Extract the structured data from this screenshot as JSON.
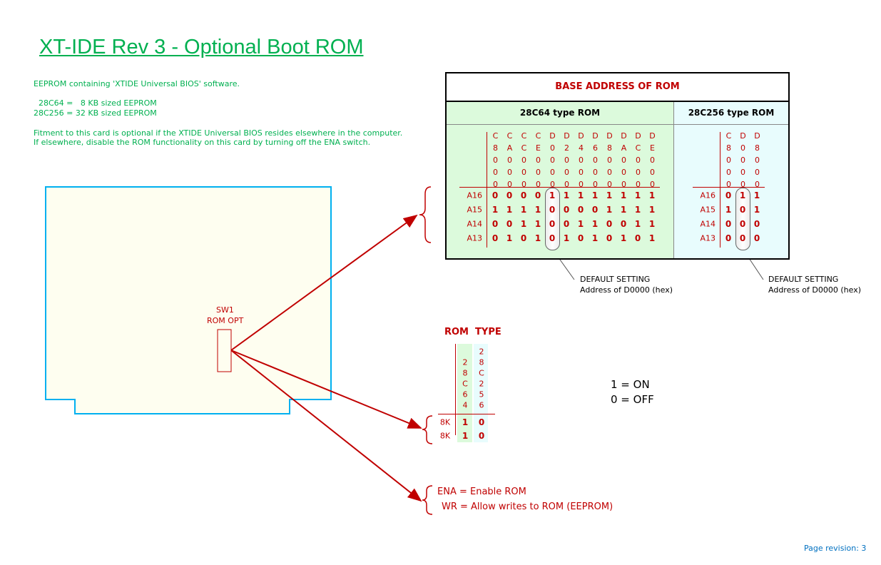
{
  "title": "XT-IDE  Rev 3  -  Optional Boot ROM",
  "notes": [
    "EEPROM containing 'XTIDE Universal BIOS' software.",
    "  28C64 =   8 KB sized EEPROM",
    "28C256 = 32 KB sized EEPROM",
    "Fitment to this card is optional if the XTIDE Universal BIOS resides elsewhere in the computer.",
    "If elsewhere, disable the ROM functionality on this card by turning off the ENA switch."
  ],
  "switch": {
    "name": "SW1",
    "label": "ROM OPT"
  },
  "base_table": {
    "header": "BASE ADDRESS OF ROM",
    "left": {
      "title": "28C64 type ROM",
      "addresses": [
        "C8000",
        "CA000",
        "CC000",
        "CE000",
        "D0000",
        "D2000",
        "D4000",
        "D6000",
        "D8000",
        "DA000",
        "DC000",
        "DE000"
      ],
      "rows": [
        {
          "label": "A16",
          "values": [
            "0",
            "0",
            "0",
            "0",
            "1",
            "1",
            "1",
            "1",
            "1",
            "1",
            "1",
            "1"
          ]
        },
        {
          "label": "A15",
          "values": [
            "1",
            "1",
            "1",
            "1",
            "0",
            "0",
            "0",
            "0",
            "1",
            "1",
            "1",
            "1"
          ]
        },
        {
          "label": "A14",
          "values": [
            "0",
            "0",
            "1",
            "1",
            "0",
            "0",
            "1",
            "1",
            "0",
            "0",
            "1",
            "1"
          ]
        },
        {
          "label": "A13",
          "values": [
            "0",
            "1",
            "0",
            "1",
            "0",
            "1",
            "0",
            "1",
            "0",
            "1",
            "0",
            "1"
          ]
        }
      ],
      "default_index": 4,
      "color": "#dcfadc"
    },
    "right": {
      "title": "28C256 type ROM",
      "addresses": [
        "C8000",
        "D0000",
        "D8000"
      ],
      "rows": [
        {
          "label": "A16",
          "values": [
            "0",
            "1",
            "1"
          ]
        },
        {
          "label": "A15",
          "values": [
            "1",
            "0",
            "1"
          ]
        },
        {
          "label": "A14",
          "values": [
            "0",
            "0",
            "0"
          ]
        },
        {
          "label": "A13",
          "values": [
            "0",
            "0",
            "0"
          ]
        }
      ],
      "default_index": 1,
      "color": "#e8fcfd"
    },
    "default_note": [
      "DEFAULT SETTING",
      "Address of D0000 (hex)"
    ]
  },
  "rom_type": {
    "title": "ROM  TYPE",
    "columns": [
      "28C64",
      "28C256"
    ],
    "rows": [
      {
        "label": "8K",
        "values": [
          "1",
          "0"
        ]
      },
      {
        "label": "8K",
        "values": [
          "1",
          "0"
        ]
      }
    ]
  },
  "legend": [
    "1 = ON",
    "0 = OFF"
  ],
  "enable_notes": [
    "ENA = Enable ROM",
    "WR = Allow writes to ROM (EEPROM)"
  ],
  "page_revision": "Page revision: 3",
  "colors": {
    "accent_red": "#c00000",
    "green_text": "#00b050",
    "card_outline": "#00b0f0",
    "card_fill": "#fefef0",
    "revision_blue": "#0070c0"
  }
}
